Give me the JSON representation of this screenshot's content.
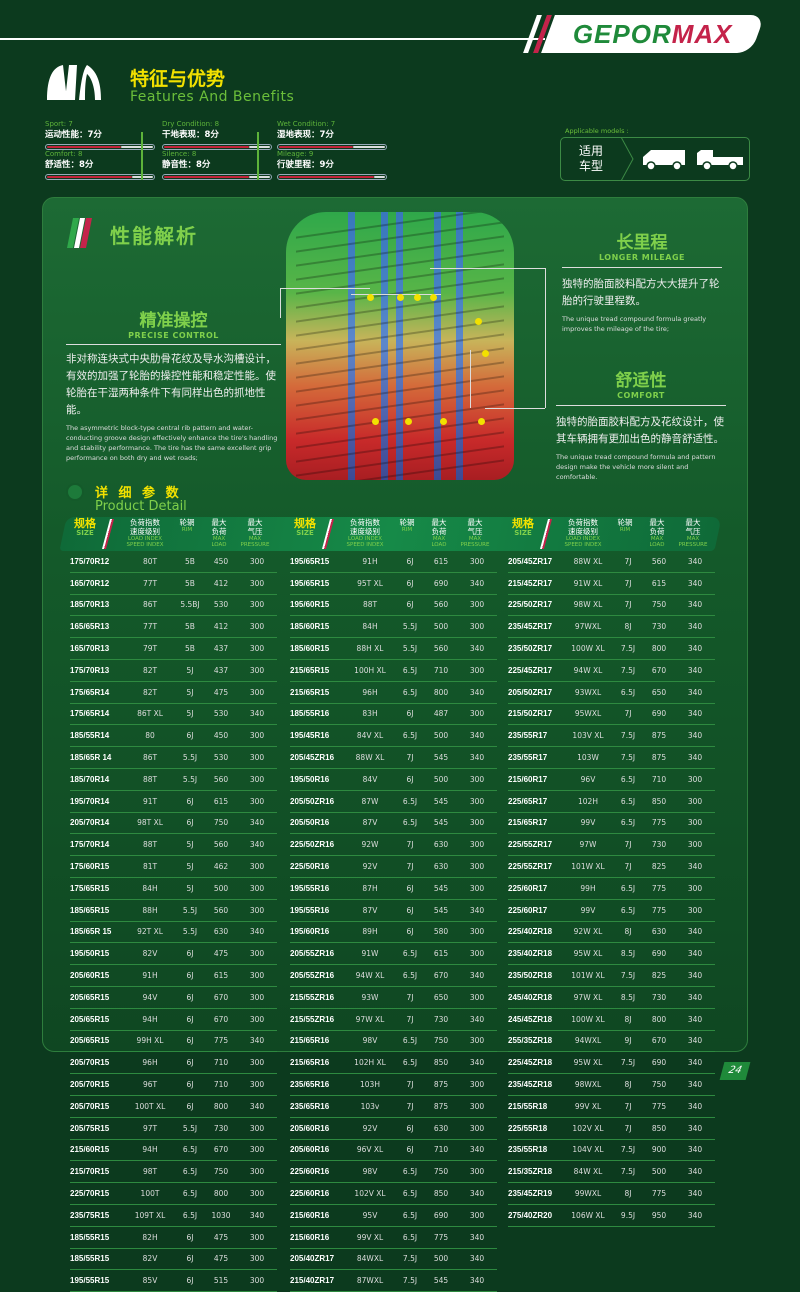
{
  "brand": {
    "logo_text_a": "GEPOR",
    "logo_text_b": "MAX"
  },
  "features": {
    "title_cn": "特征与优势",
    "title_en": "Features And Benefits"
  },
  "ratings": [
    {
      "en": "Sport: 7",
      "cn": "运动性能：7分",
      "score": 7,
      "max": 10
    },
    {
      "en": "Comfort: 8",
      "cn": "舒适性：8分",
      "score": 8,
      "max": 10
    },
    {
      "en": "Dry Condition: 8",
      "cn": "干地表现：8分",
      "score": 8,
      "max": 10
    },
    {
      "en": "Silence: 8",
      "cn": "静音性：8分",
      "score": 8,
      "max": 10
    },
    {
      "en": "Wet Condition: 7",
      "cn": "湿地表现：7分",
      "score": 7,
      "max": 10
    },
    {
      "en": "Mileage: 9",
      "cn": "行驶里程：9分",
      "score": 9,
      "max": 10
    }
  ],
  "models": {
    "label": "Applicable models :",
    "cn_line1": "适用",
    "cn_line2": "车型",
    "icons": [
      "van-icon",
      "pickup-truck-icon"
    ]
  },
  "performance": {
    "title": "性能解析",
    "precise": {
      "cn": "精准操控",
      "en": "PRECISE CONTROL",
      "desc_cn": "非对称连块式中央肋骨花纹及导水沟槽设计，有效的加强了轮胎的操控性能和稳定性能。使轮胎在干湿两种条件下有同样出色的抓地性能。",
      "desc_en": "The asymmetric block-type central rib pattern and water-conducting groove design effectively enhance the tire's handling and stability performance. The tire has the same excellent grip performance on both dry and wet roads;"
    },
    "mileage": {
      "cn": "长里程",
      "en": "LONGER MILEAGE",
      "desc_cn": "独特的胎面胶料配方大大提升了轮胎的行驶里程数。",
      "desc_en": "The unique tread compound formula greatly improves the mileage of the tire;"
    },
    "comfort": {
      "cn": "舒适性",
      "en": "COMFORT",
      "desc_cn": "独特的胎面胶料配方及花纹设计，使其车辆拥有更加出色的静音舒适性。",
      "desc_en": "The unique tread compound formula and pattern design make the vehicle more silent and comfortable."
    }
  },
  "product_detail": {
    "title_cn": "详 细 参 数",
    "title_en": "Product Detail"
  },
  "table_header": {
    "size_cn": "规格",
    "size_en": "SIZE",
    "load_cn1": "负荷指数",
    "load_cn2": "速度级别",
    "load_en1": "LOAD INDEX",
    "load_en2": "SPEED INDEX",
    "rim_cn": "轮辋",
    "rim_en": "RIM",
    "maxload_cn1": "最大",
    "maxload_cn2": "负荷",
    "maxload_en1": "MAX",
    "maxload_en2": "LOAD",
    "press_cn1": "最大",
    "press_cn2": "气压",
    "press_en1": "MAX",
    "press_en2": "PRESSURE"
  },
  "table": [
    [
      [
        "175/70R12",
        "80T",
        "5B",
        "450",
        "300"
      ],
      [
        "165/70R12",
        "77T",
        "5B",
        "412",
        "300"
      ],
      [
        "185/70R13",
        "86T",
        "5.5BJ",
        "530",
        "300"
      ],
      [
        "165/65R13",
        "77T",
        "5B",
        "412",
        "300"
      ],
      [
        "165/70R13",
        "79T",
        "5B",
        "437",
        "300"
      ],
      [
        "175/70R13",
        "82T",
        "5J",
        "437",
        "300"
      ],
      [
        "175/65R14",
        "82T",
        "5J",
        "475",
        "300"
      ],
      [
        "175/65R14",
        "86T XL",
        "5J",
        "530",
        "340"
      ],
      [
        "185/55R14",
        "80",
        "6J",
        "450",
        "300"
      ],
      [
        "185/65R 14",
        "86T",
        "5.5J",
        "530",
        "300"
      ],
      [
        "185/70R14",
        "88T",
        "5.5J",
        "560",
        "300"
      ],
      [
        "195/70R14",
        "91T",
        "6J",
        "615",
        "300"
      ],
      [
        "205/70R14",
        "98T XL",
        "6J",
        "750",
        "340"
      ],
      [
        "175/70R14",
        "88T",
        "5J",
        "560",
        "340"
      ],
      [
        "175/60R15",
        "81T",
        "5J",
        "462",
        "300"
      ],
      [
        "175/65R15",
        "84H",
        "5J",
        "500",
        "300"
      ],
      [
        "185/65R15",
        "88H",
        "5.5J",
        "560",
        "300"
      ],
      [
        "185/65R 15",
        "92T XL",
        "5.5J",
        "630",
        "340"
      ],
      [
        "195/50R15",
        "82V",
        "6J",
        "475",
        "300"
      ],
      [
        "205/60R15",
        "91H",
        "6J",
        "615",
        "300"
      ],
      [
        "205/65R15",
        "94V",
        "6J",
        "670",
        "300"
      ],
      [
        "205/65R15",
        "94H",
        "6J",
        "670",
        "300"
      ],
      [
        "205/65R15",
        "99H XL",
        "6J",
        "775",
        "340"
      ],
      [
        "205/70R15",
        "96H",
        "6J",
        "710",
        "300"
      ],
      [
        "205/70R15",
        "96T",
        "6J",
        "710",
        "300"
      ],
      [
        "205/70R15",
        "100T XL",
        "6J",
        "800",
        "340"
      ],
      [
        "205/75R15",
        "97T",
        "5.5J",
        "730",
        "300"
      ],
      [
        "215/60R15",
        "94H",
        "6.5J",
        "670",
        "300"
      ],
      [
        "215/70R15",
        "98T",
        "6.5J",
        "750",
        "300"
      ],
      [
        "225/70R15",
        "100T",
        "6.5J",
        "800",
        "300"
      ],
      [
        "235/75R15",
        "109T XL",
        "6.5J",
        "1030",
        "340"
      ],
      [
        "185/55R15",
        "82H",
        "6J",
        "475",
        "300"
      ],
      [
        "185/55R15",
        "82V",
        "6J",
        "475",
        "300"
      ],
      [
        "195/55R15",
        "85V",
        "6J",
        "515",
        "300"
      ]
    ],
    [
      [
        "195/65R15",
        "91H",
        "6J",
        "615",
        "300"
      ],
      [
        "195/65R15",
        "95T XL",
        "6J",
        "690",
        "340"
      ],
      [
        "195/60R15",
        "88T",
        "6J",
        "560",
        "300"
      ],
      [
        "185/60R15",
        "84H",
        "5.5J",
        "500",
        "300"
      ],
      [
        "185/60R15",
        "88H XL",
        "5.5J",
        "560",
        "340"
      ],
      [
        "215/65R15",
        "100H XL",
        "6.5J",
        "710",
        "300"
      ],
      [
        "215/65R15",
        "96H",
        "6.5J",
        "800",
        "340"
      ],
      [
        "185/55R16",
        "83H",
        "6J",
        "487",
        "300"
      ],
      [
        "195/45R16",
        "84V XL",
        "6.5J",
        "500",
        "340"
      ],
      [
        "205/45ZR16",
        "88W XL",
        "7J",
        "545",
        "340"
      ],
      [
        "195/50R16",
        "84V",
        "6J",
        "500",
        "300"
      ],
      [
        "205/50ZR16",
        "87W",
        "6.5J",
        "545",
        "300"
      ],
      [
        "205/50R16",
        "87V",
        "6.5J",
        "545",
        "300"
      ],
      [
        "225/50ZR16",
        "92W",
        "7J",
        "630",
        "300"
      ],
      [
        "225/50R16",
        "92V",
        "7J",
        "630",
        "300"
      ],
      [
        "195/55R16",
        "87H",
        "6J",
        "545",
        "300"
      ],
      [
        "195/55R16",
        "87V",
        "6J",
        "545",
        "340"
      ],
      [
        "195/60R16",
        "89H",
        "6J",
        "580",
        "300"
      ],
      [
        "205/55ZR16",
        "91W",
        "6.5J",
        "615",
        "300"
      ],
      [
        "205/55ZR16",
        "94W XL",
        "6.5J",
        "670",
        "340"
      ],
      [
        "215/55ZR16",
        "93W",
        "7J",
        "650",
        "300"
      ],
      [
        "215/55ZR16",
        "97W XL",
        "7J",
        "730",
        "340"
      ],
      [
        "215/65R16",
        "98V",
        "6.5J",
        "750",
        "300"
      ],
      [
        "215/65R16",
        "102H XL",
        "6.5J",
        "850",
        "340"
      ],
      [
        "235/65R16",
        "103H",
        "7J",
        "875",
        "300"
      ],
      [
        "235/65R16",
        "103v",
        "7J",
        "875",
        "300"
      ],
      [
        "205/60R16",
        "92V",
        "6J",
        "630",
        "300"
      ],
      [
        "205/60R16",
        "96V XL",
        "6J",
        "710",
        "340"
      ],
      [
        "225/60R16",
        "98V",
        "6.5J",
        "750",
        "300"
      ],
      [
        "225/60R16",
        "102V XL",
        "6.5J",
        "850",
        "340"
      ],
      [
        "215/60R16",
        "95V",
        "6.5J",
        "690",
        "300"
      ],
      [
        "215/60R16",
        "99V XL",
        "6.5J",
        "775",
        "340"
      ],
      [
        "205/40ZR17",
        "84WXL",
        "7.5J",
        "500",
        "340"
      ],
      [
        "215/40ZR17",
        "87WXL",
        "7.5J",
        "545",
        "340"
      ]
    ],
    [
      [
        "205/45ZR17",
        "88W XL",
        "7J",
        "560",
        "340"
      ],
      [
        "215/45ZR17",
        "91W XL",
        "7J",
        "615",
        "340"
      ],
      [
        "225/50ZR17",
        "98W XL",
        "7J",
        "750",
        "340"
      ],
      [
        "235/45ZR17",
        "97WXL",
        "8J",
        "730",
        "340"
      ],
      [
        "235/50ZR17",
        "100W XL",
        "7.5J",
        "800",
        "340"
      ],
      [
        "225/45ZR17",
        "94W XL",
        "7.5J",
        "670",
        "340"
      ],
      [
        "205/50ZR17",
        "93WXL",
        "6.5J",
        "650",
        "340"
      ],
      [
        "215/50ZR17",
        "95WXL",
        "7J",
        "690",
        "340"
      ],
      [
        "235/55R17",
        "103V XL",
        "7.5J",
        "875",
        "340"
      ],
      [
        "235/55R17",
        "103W",
        "7.5J",
        "875",
        "340"
      ],
      [
        "215/60R17",
        "96V",
        "6.5J",
        "710",
        "300"
      ],
      [
        "225/65R17",
        "102H",
        "6.5J",
        "850",
        "300"
      ],
      [
        "215/65R17",
        "99V",
        "6.5J",
        "775",
        "300"
      ],
      [
        "225/55ZR17",
        "97W",
        "7J",
        "730",
        "300"
      ],
      [
        "225/55ZR17",
        "101W XL",
        "7J",
        "825",
        "340"
      ],
      [
        "225/60R17",
        "99H",
        "6.5J",
        "775",
        "300"
      ],
      [
        "225/60R17",
        "99V",
        "6.5J",
        "775",
        "300"
      ],
      [
        "225/40ZR18",
        "92W XL",
        "8J",
        "630",
        "340"
      ],
      [
        "235/40ZR18",
        "95W XL",
        "8.5J",
        "690",
        "340"
      ],
      [
        "235/50ZR18",
        "101W XL",
        "7.5J",
        "825",
        "340"
      ],
      [
        "245/40ZR18",
        "97W XL",
        "8.5J",
        "730",
        "340"
      ],
      [
        "245/45ZR18",
        "100W XL",
        "8J",
        "800",
        "340"
      ],
      [
        "255/35ZR18",
        "94WXL",
        "9J",
        "670",
        "340"
      ],
      [
        "225/45ZR18",
        "95W XL",
        "7.5J",
        "690",
        "340"
      ],
      [
        "235/45ZR18",
        "98WXL",
        "8J",
        "750",
        "340"
      ],
      [
        "215/55R18",
        "99V XL",
        "7J",
        "775",
        "340"
      ],
      [
        "225/55R18",
        "102V XL",
        "7J",
        "850",
        "340"
      ],
      [
        "235/55R18",
        "104V XL",
        "7.5J",
        "900",
        "340"
      ],
      [
        "215/35ZR18",
        "84W XL",
        "7.5J",
        "500",
        "340"
      ],
      [
        "235/45ZR19",
        "99WXL",
        "8J",
        "775",
        "340"
      ],
      [
        "275/40ZR20",
        "106W XL",
        "9.5J",
        "950",
        "340"
      ]
    ]
  ],
  "page_number": "24",
  "colors": {
    "background": "#0c3a1e",
    "accent_yellow": "#f2e100",
    "accent_green": "#7fd04b",
    "accent_red": "#c4234a"
  }
}
